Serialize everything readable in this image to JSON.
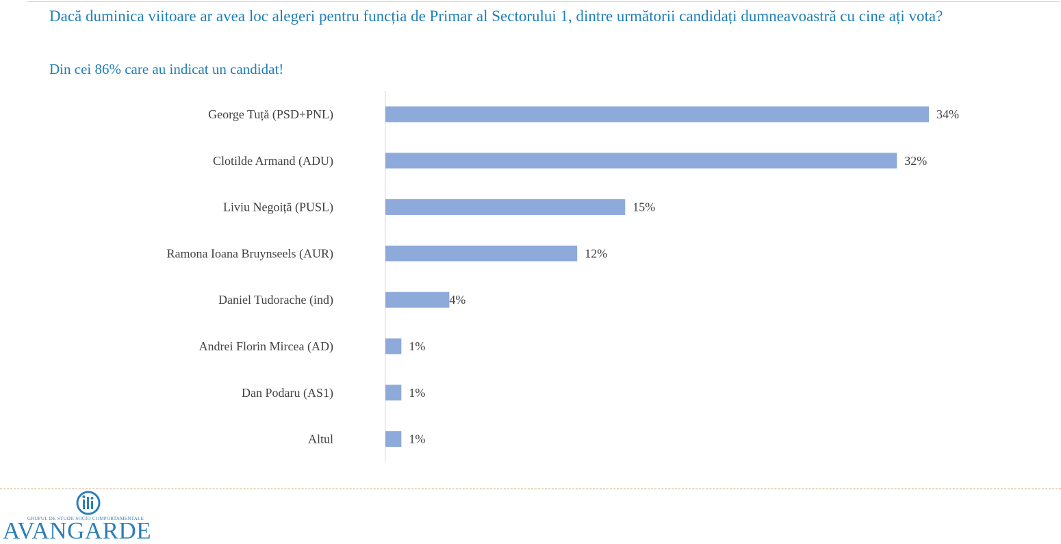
{
  "chart_data": {
    "type": "bar",
    "orientation": "horizontal",
    "title": "Dacă duminica viitoare ar avea loc alegeri pentru funcția de Primar al Sectorului 1, dintre următorii candidați dumneavoastră cu cine ați vota?",
    "subtitle": "Din cei 86% care au indicat un candidat!",
    "categories": [
      "George Tuță (PSD+PNL)",
      "Clotilde Armand (ADU)",
      "Liviu Negoiță (PUSL)",
      "Ramona Ioana Bruynseels (AUR)",
      "Daniel Tudorache (ind)",
      "Andrei Florin Mircea (AD)",
      "Dan Podaru (AS1)",
      "Altul"
    ],
    "values": [
      34,
      32,
      15,
      12,
      4,
      1,
      1,
      1
    ],
    "value_labels": [
      "34%",
      "32%",
      "15%",
      "12%",
      "4%",
      "1%",
      "1%",
      "1%"
    ],
    "unit": "%",
    "xlim": [
      0,
      34
    ],
    "grid": false,
    "legend": "none",
    "colors": {
      "bar": "#8eaadb",
      "title": "#1f7fb8"
    }
  },
  "footer": {
    "logo_tagline": "GRUPUL DE STUDII SOCIO COMPORTAMENTALE",
    "logo_word": "AVANGARDE"
  }
}
